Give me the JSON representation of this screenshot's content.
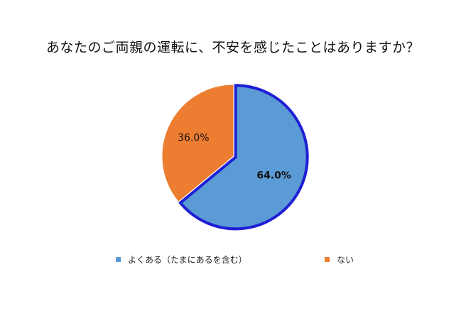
{
  "chart_data": {
    "type": "pie",
    "title": "あなたのご両親の運転に、不安を感じたことはありますか？",
    "categories": [
      "よくある（たまにあるを含む）",
      "ない"
    ],
    "values": [
      64.0,
      36.0
    ],
    "value_labels": [
      "64.0%",
      "36.0%"
    ],
    "colors": [
      "#5B9BD5",
      "#ED7D31"
    ],
    "highlight_color": "#1F1FD6",
    "highlighted_slice": 0,
    "legend_position": "bottom"
  }
}
